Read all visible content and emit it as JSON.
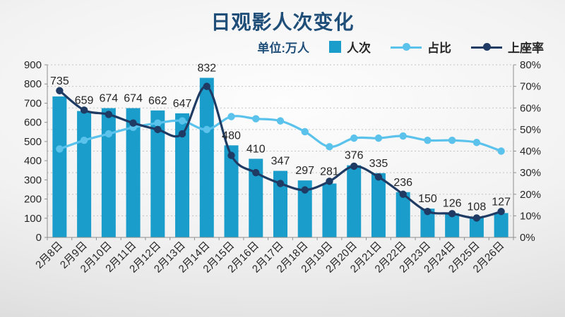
{
  "header": {
    "title": "日观影人次变化",
    "title_color": "#1F4E79"
  },
  "legend": {
    "unit_label": "单位:万人",
    "unit_color": "#1F4E79",
    "items": [
      {
        "label": "人次",
        "marker": "square",
        "color": "#1A9DCB"
      },
      {
        "label": "占比",
        "marker": "line-dot",
        "color": "#5BC2EC"
      },
      {
        "label": "上座率",
        "marker": "line-dot",
        "color": "#1F3B63"
      }
    ]
  },
  "chart_data": {
    "type": "bar+line combo",
    "title": "日观影人次变化",
    "unit": "万人",
    "categories": [
      "2月8日",
      "2月9日",
      "2月10日",
      "2月11日",
      "2月12日",
      "2月13日",
      "2月14日",
      "2月15日",
      "2月16日",
      "2月17日",
      "2月18日",
      "2月19日",
      "2月20日",
      "2月21日",
      "2月22日",
      "2月23日",
      "2月24日",
      "2月25日",
      "2月26日"
    ],
    "series": [
      {
        "name": "人次",
        "type": "bar",
        "axis": "left",
        "unit": "万人",
        "color": "#1A9DCB",
        "values": [
          735,
          659,
          674,
          674,
          662,
          647,
          832,
          480,
          410,
          347,
          297,
          281,
          376,
          335,
          236,
          150,
          126,
          108,
          127
        ],
        "data_labels": true
      },
      {
        "name": "占比",
        "type": "line",
        "axis": "right",
        "unit": "%",
        "color": "#5BC2EC",
        "values": [
          41,
          45,
          48,
          51,
          53,
          54,
          50,
          56,
          55,
          54,
          49,
          42,
          46,
          46,
          47,
          45,
          45,
          44,
          40
        ]
      },
      {
        "name": "上座率",
        "type": "line",
        "axis": "right",
        "unit": "%",
        "color": "#1F3B63",
        "values": [
          68,
          59,
          57,
          53,
          50,
          48,
          70,
          38,
          30,
          25,
          22,
          26,
          33,
          28,
          20,
          12,
          11,
          9,
          12
        ]
      }
    ],
    "left_axis": {
      "min": 0,
      "max": 900,
      "step": 100,
      "tick_labels": [
        "900",
        "800",
        "700",
        "600",
        "500",
        "400",
        "300",
        "200",
        "100",
        "0"
      ]
    },
    "right_axis": {
      "min": 0,
      "max": 80,
      "step": 10,
      "tick_labels": [
        "80%",
        "70%",
        "60%",
        "50%",
        "40%",
        "30%",
        "20%",
        "10%",
        "0%"
      ]
    },
    "grid": "dashed horizontal at right-axis steps",
    "x_labels_rotation": -45,
    "colors": {
      "axis_line": "#8E8E8E",
      "grid_line": "#C3C3C3",
      "value_label": "#1A1A1A"
    }
  }
}
